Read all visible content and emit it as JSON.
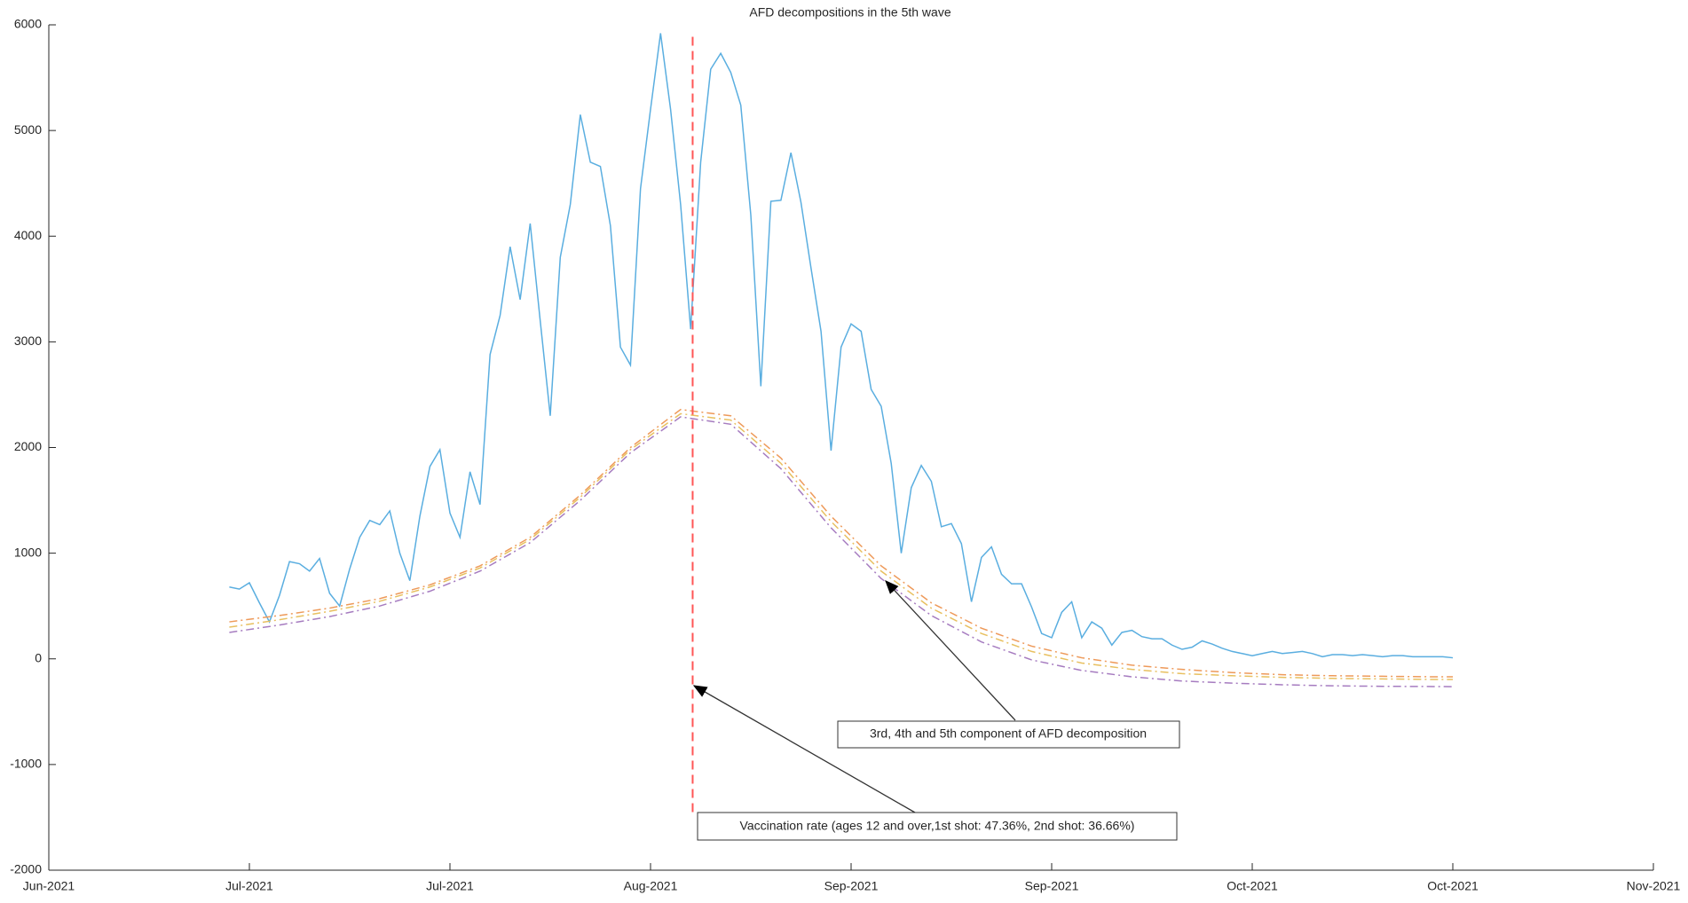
{
  "chart_data": {
    "type": "line",
    "title": "AFD decompositions in the 5th wave",
    "xlim": [
      0,
      160
    ],
    "xticks": [
      {
        "value": 0,
        "label": "Jun-2021"
      },
      {
        "value": 20,
        "label": "Jul-2021"
      },
      {
        "value": 40,
        "label": "Jul-2021"
      },
      {
        "value": 60,
        "label": "Aug-2021"
      },
      {
        "value": 80,
        "label": "Sep-2021"
      },
      {
        "value": 100,
        "label": "Sep-2021"
      },
      {
        "value": 120,
        "label": "Oct-2021"
      },
      {
        "value": 140,
        "label": "Oct-2021"
      },
      {
        "value": 160,
        "label": "Nov-2021"
      }
    ],
    "ylim": [
      -2000,
      6000
    ],
    "yticks": [
      -2000,
      -1000,
      0,
      1000,
      2000,
      3000,
      4000,
      5000,
      6000
    ],
    "series": [
      {
        "color": "#5aaee0",
        "style": "solid",
        "x": [
          18,
          19,
          20,
          21,
          22,
          23,
          24,
          25,
          26,
          27,
          28,
          29,
          30,
          31,
          32,
          33,
          34,
          35,
          36,
          37,
          38,
          39,
          40,
          41,
          42,
          43,
          44,
          45,
          46,
          47,
          48,
          49,
          50,
          51,
          52,
          53,
          54,
          55,
          56,
          57,
          58,
          59,
          60,
          61,
          62,
          63,
          64,
          65,
          66,
          67,
          68,
          69,
          70,
          71,
          72,
          73,
          74,
          75,
          76,
          77,
          78,
          79,
          80,
          81,
          82,
          83,
          84,
          85,
          86,
          87,
          88,
          89,
          90,
          91,
          92,
          93,
          94,
          95,
          96,
          97,
          98,
          99,
          100,
          101,
          102,
          103,
          104,
          105,
          106,
          107,
          108,
          109,
          110,
          111,
          112,
          113,
          114,
          115,
          116,
          117,
          118,
          119,
          120,
          121,
          122,
          123,
          124,
          125,
          126,
          127,
          128,
          129,
          130,
          131,
          132,
          133,
          134,
          135,
          136,
          137,
          138,
          139,
          140
        ],
        "values": [
          680,
          660,
          720,
          530,
          350,
          600,
          920,
          900,
          830,
          950,
          620,
          500,
          850,
          1150,
          1310,
          1270,
          1400,
          1000,
          740,
          1350,
          1820,
          1980,
          1380,
          1150,
          1770,
          1460,
          2880,
          3250,
          3900,
          3400,
          4120,
          3200,
          2300,
          3800,
          4300,
          5150,
          4700,
          4660,
          4100,
          2950,
          2780,
          4450,
          5200,
          5920,
          5200,
          4300,
          3120,
          4700,
          5580,
          5730,
          5550,
          5240,
          4200,
          2580,
          4330,
          4340,
          4790,
          4320,
          3700,
          3100,
          1970,
          2950,
          3170,
          3100,
          2550,
          2390,
          1850,
          1000,
          1620,
          1830,
          1680,
          1250,
          1280,
          1090,
          540,
          960,
          1060,
          800,
          710,
          710,
          490,
          240,
          200,
          440,
          540,
          200,
          350,
          290,
          130,
          250,
          270,
          210,
          190,
          190,
          130,
          90,
          110,
          170,
          140,
          100,
          70,
          50,
          30,
          50,
          70,
          50,
          60,
          70,
          50,
          20,
          40,
          40,
          30,
          40,
          30,
          20,
          30,
          30,
          20,
          20,
          20,
          20,
          10
        ]
      },
      {
        "color": "#ee9a5a",
        "style": "dashdot",
        "x": [
          18,
          23,
          28,
          33,
          38,
          43,
          48,
          53,
          58,
          63,
          68,
          73,
          78,
          83,
          88,
          93,
          98,
          103,
          108,
          113,
          118,
          123,
          128,
          133,
          138,
          140
        ],
        "values": [
          350,
          410,
          480,
          570,
          700,
          880,
          1150,
          1550,
          2000,
          2360,
          2300,
          1900,
          1350,
          880,
          530,
          290,
          120,
          10,
          -60,
          -100,
          -130,
          -150,
          -160,
          -165,
          -170,
          -170
        ]
      },
      {
        "color": "#e8c060",
        "style": "dashdot",
        "x": [
          18,
          23,
          28,
          33,
          38,
          43,
          48,
          53,
          58,
          63,
          68,
          73,
          78,
          83,
          88,
          93,
          98,
          103,
          108,
          113,
          118,
          123,
          128,
          133,
          138,
          140
        ],
        "values": [
          300,
          370,
          450,
          545,
          680,
          860,
          1130,
          1530,
          1980,
          2320,
          2260,
          1850,
          1300,
          830,
          480,
          240,
          70,
          -40,
          -100,
          -140,
          -160,
          -175,
          -185,
          -190,
          -195,
          -195
        ]
      },
      {
        "color": "#a67cc0",
        "style": "dashdot",
        "x": [
          18,
          23,
          28,
          33,
          38,
          43,
          48,
          53,
          58,
          63,
          68,
          73,
          78,
          83,
          88,
          93,
          98,
          103,
          108,
          113,
          118,
          123,
          128,
          133,
          138,
          140
        ],
        "values": [
          250,
          320,
          400,
          500,
          640,
          830,
          1100,
          1500,
          1950,
          2290,
          2220,
          1800,
          1240,
          760,
          410,
          160,
          -10,
          -110,
          -170,
          -210,
          -230,
          -245,
          -255,
          -260,
          -262,
          -263
        ]
      }
    ],
    "vline": {
      "x": 64.2,
      "y": [
        -1450,
        5900
      ],
      "color": "#ff5555"
    },
    "annotations": [
      "3rd, 4th and 5th component of AFD decomposition",
      "Vaccination rate (ages 12 and over,1st shot: 47.36%, 2nd shot: 36.66%)"
    ]
  }
}
